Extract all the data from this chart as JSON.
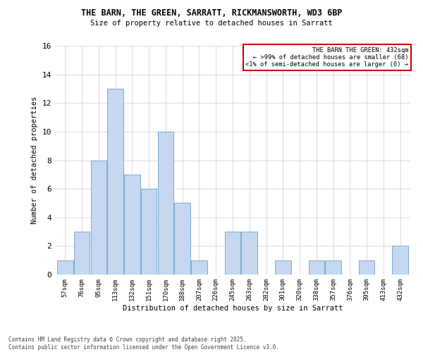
{
  "title1": "THE BARN, THE GREEN, SARRATT, RICKMANSWORTH, WD3 6BP",
  "title2": "Size of property relative to detached houses in Sarratt",
  "xlabel": "Distribution of detached houses by size in Sarratt",
  "ylabel": "Number of detached properties",
  "categories": [
    "57sqm",
    "76sqm",
    "95sqm",
    "113sqm",
    "132sqm",
    "151sqm",
    "170sqm",
    "188sqm",
    "207sqm",
    "226sqm",
    "245sqm",
    "263sqm",
    "282sqm",
    "301sqm",
    "320sqm",
    "338sqm",
    "357sqm",
    "376sqm",
    "395sqm",
    "413sqm",
    "432sqm"
  ],
  "values": [
    1,
    3,
    8,
    13,
    7,
    6,
    10,
    5,
    1,
    0,
    3,
    3,
    0,
    1,
    0,
    1,
    1,
    0,
    1,
    0,
    2
  ],
  "bar_color": "#c5d8f0",
  "bar_edge_color": "#7aaad0",
  "annotation_box_color": "#cc0000",
  "annotation_line1": "THE BARN THE GREEN: 432sqm",
  "annotation_line2": "← >99% of detached houses are smaller (68)",
  "annotation_line3": "<1% of semi-detached houses are larger (0) →",
  "footer_line1": "Contains HM Land Registry data © Crown copyright and database right 2025.",
  "footer_line2": "Contains public sector information licensed under the Open Government Licence v3.0.",
  "ylim": [
    0,
    16
  ],
  "yticks": [
    0,
    2,
    4,
    6,
    8,
    10,
    12,
    14,
    16
  ],
  "bg_color": "#ffffff",
  "grid_color": "#cccccc"
}
